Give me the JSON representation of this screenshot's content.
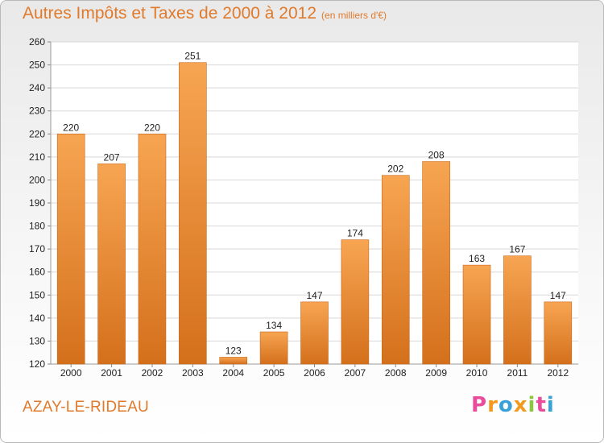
{
  "chart_data": {
    "type": "bar",
    "title": "Autres Impôts et Taxes de 2000 à 2012",
    "subtitle": "(en milliers d'€)",
    "categories": [
      "2000",
      "2001",
      "2002",
      "2003",
      "2004",
      "2005",
      "2006",
      "2007",
      "2008",
      "2009",
      "2010",
      "2011",
      "2012"
    ],
    "values": [
      220,
      207,
      220,
      251,
      123,
      134,
      147,
      174,
      202,
      208,
      163,
      167,
      147
    ],
    "ylim": [
      120,
      260
    ],
    "yticks": [
      120,
      130,
      140,
      150,
      160,
      170,
      180,
      190,
      200,
      210,
      220,
      230,
      240,
      250,
      260
    ],
    "grid": true,
    "bar_color": "#f0903c"
  },
  "footer": {
    "commune": "AZAY-LE-RIDEAU",
    "brand_letters": [
      "P",
      "r",
      "o",
      "x",
      "i",
      "t",
      "i"
    ],
    "brand_colors": [
      "#e84c9a",
      "#f39a1e",
      "#3aa0d8",
      "#f39a1e",
      "#8cc63f",
      "#e84c9a",
      "#3aa0d8"
    ]
  }
}
